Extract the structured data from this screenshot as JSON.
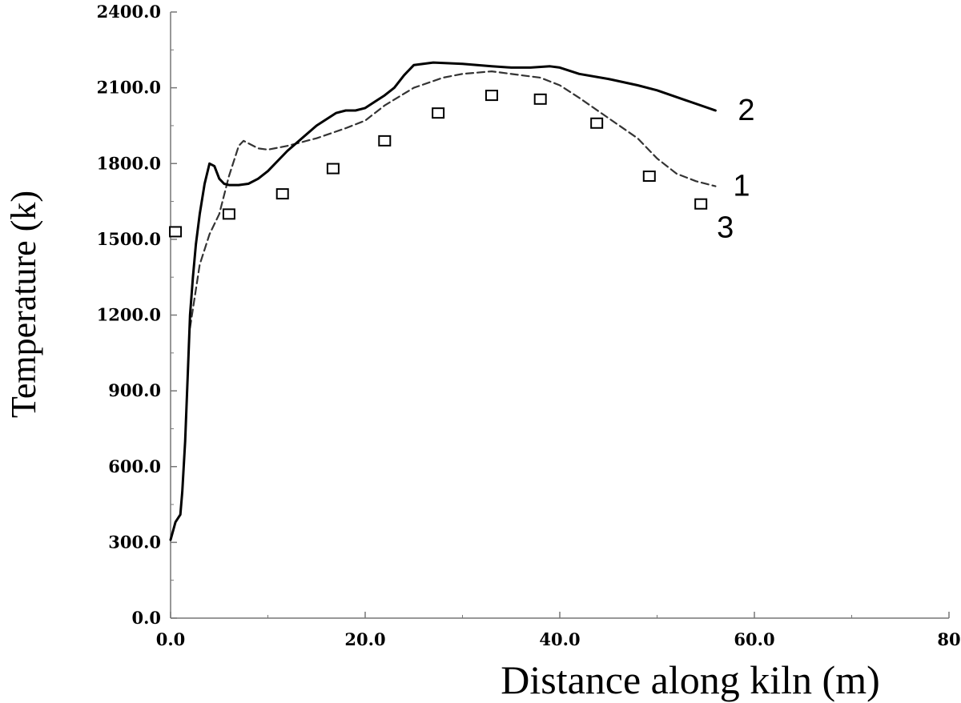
{
  "chart_data": {
    "type": "line",
    "title": "",
    "xlabel": "Distance along kiln (m)",
    "ylabel": "Temperature (k)",
    "xlim": [
      0,
      80
    ],
    "ylim": [
      0,
      2400
    ],
    "xticks": [
      0,
      20,
      40,
      60,
      80
    ],
    "xtick_labels": [
      "0.0",
      "20.0",
      "40.0",
      "60.0",
      "80"
    ],
    "yticks": [
      0,
      300,
      600,
      900,
      1200,
      1500,
      1800,
      2100,
      2400
    ],
    "ytick_labels": [
      "0.0",
      "300.0",
      "600.0",
      "900.0",
      "1200.0",
      "1500.0",
      "1800.0",
      "2100.0",
      "2400.0"
    ],
    "grid": false,
    "colors": {
      "axis": "#777777",
      "line": "#000000",
      "ylabel": "#5a3a1a"
    },
    "series": [
      {
        "name": "1",
        "style": "dashed",
        "x": [
          2,
          3,
          4,
          5,
          6,
          7,
          7.5,
          8,
          9,
          10,
          12,
          15,
          18,
          20,
          22,
          25,
          28,
          30,
          33,
          36,
          38,
          40,
          42,
          45,
          48,
          50,
          52,
          54,
          56
        ],
        "y": [
          1150,
          1400,
          1520,
          1600,
          1750,
          1870,
          1890,
          1880,
          1860,
          1855,
          1870,
          1900,
          1940,
          1970,
          2030,
          2100,
          2140,
          2155,
          2165,
          2150,
          2140,
          2110,
          2060,
          1980,
          1900,
          1820,
          1760,
          1730,
          1710
        ]
      },
      {
        "name": "2",
        "style": "solid",
        "x": [
          0,
          0.5,
          1,
          1.2,
          1.5,
          1.8,
          2,
          2.3,
          2.6,
          3,
          3.5,
          4,
          4.5,
          5,
          5.5,
          6,
          7,
          8,
          9,
          10,
          12,
          15,
          17,
          18,
          19,
          20,
          21,
          22,
          23,
          24,
          25,
          27,
          30,
          33,
          35,
          37,
          39,
          40,
          42,
          45,
          48,
          50,
          53,
          56
        ],
        "y": [
          310,
          380,
          410,
          500,
          700,
          1000,
          1200,
          1350,
          1480,
          1600,
          1720,
          1800,
          1790,
          1740,
          1720,
          1715,
          1715,
          1720,
          1740,
          1770,
          1850,
          1950,
          2000,
          2010,
          2010,
          2020,
          2045,
          2070,
          2100,
          2150,
          2190,
          2200,
          2195,
          2185,
          2180,
          2180,
          2185,
          2180,
          2155,
          2135,
          2110,
          2090,
          2050,
          2010
        ]
      },
      {
        "name": "3",
        "style": "markers",
        "marker": "square",
        "x": [
          0.5,
          6,
          11.5,
          16.7,
          22,
          27.5,
          33,
          38,
          43.8,
          49.2,
          54.5
        ],
        "y": [
          1530,
          1600,
          1680,
          1780,
          1890,
          2000,
          2070,
          2055,
          1960,
          1750,
          1640
        ]
      }
    ],
    "annotations": [
      {
        "text": "2",
        "series": "2"
      },
      {
        "text": "1",
        "series": "1"
      },
      {
        "text": "3",
        "series": "3"
      }
    ]
  }
}
